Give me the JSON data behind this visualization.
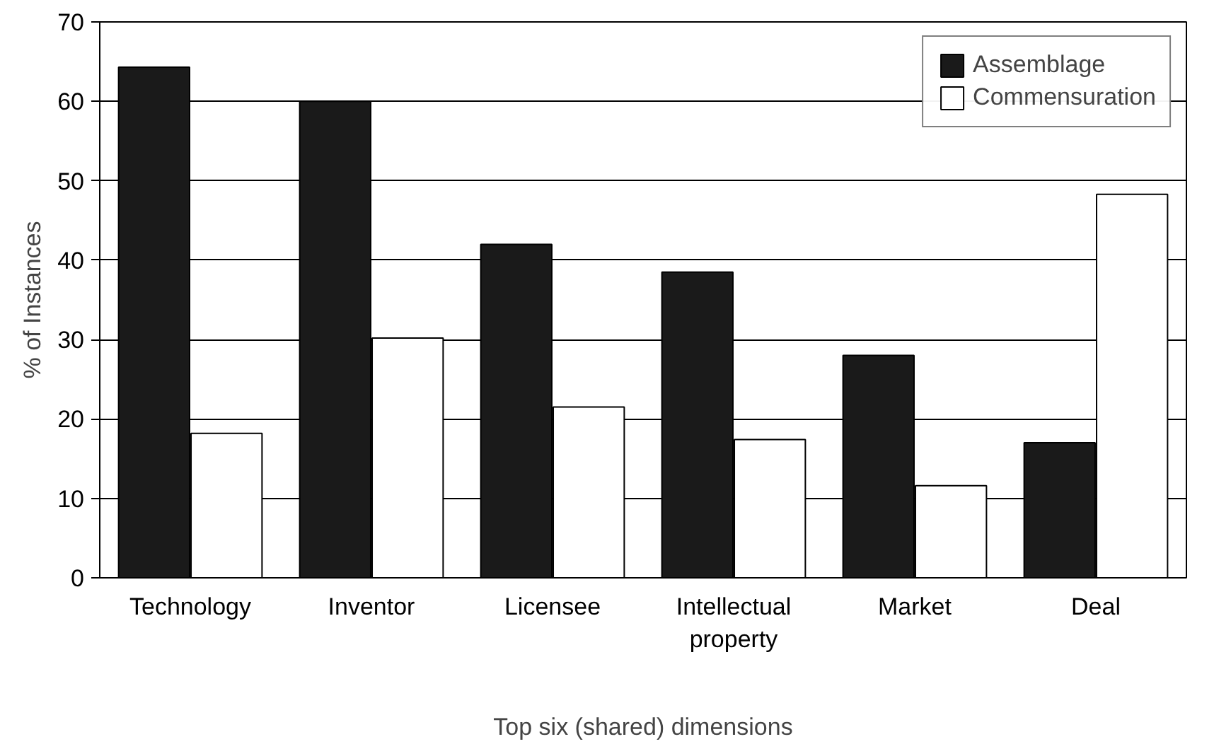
{
  "chart_data": {
    "type": "bar",
    "xlabel": "Top six (shared) dimensions",
    "ylabel": "% of Instances",
    "categories": [
      "Technology",
      "Inventor",
      "Licensee",
      "Intellectual property",
      "Market",
      "Deal"
    ],
    "series": [
      {
        "name": "Assemblage",
        "color": "#1a1a1a",
        "values": [
          64.3,
          60,
          42,
          38.5,
          28,
          17
        ]
      },
      {
        "name": "Commensuration",
        "color": "#ffffff",
        "values": [
          18.2,
          30.2,
          21.5,
          17.4,
          11.6,
          48.3
        ]
      }
    ],
    "ylim": [
      0,
      70
    ],
    "yticks": [
      0,
      10,
      20,
      30,
      40,
      50,
      60,
      70
    ],
    "grid": "y",
    "legend": "top right"
  }
}
